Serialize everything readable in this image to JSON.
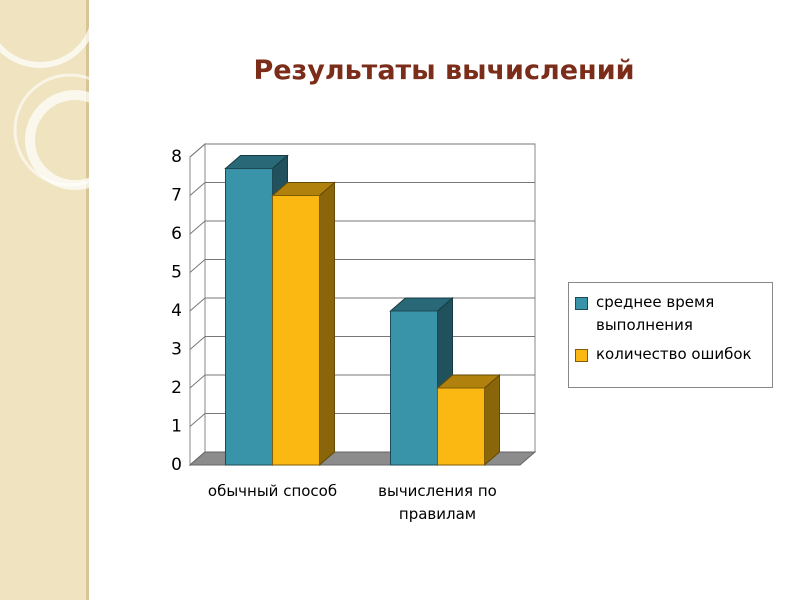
{
  "chart_data": {
    "type": "bar",
    "title": "Результаты вычислений",
    "categories": [
      "обычный способ",
      "вычисления по правилам"
    ],
    "series": [
      {
        "name": "среднее время выполнения",
        "color": "#3a94a9",
        "values": [
          7.7,
          4
        ]
      },
      {
        "name": "количество ошибок",
        "color": "#fbb812",
        "values": [
          7,
          2
        ]
      }
    ],
    "ylim": [
      0,
      8
    ],
    "yticks": [
      0,
      1,
      2,
      3,
      4,
      5,
      6,
      7,
      8
    ],
    "grid": true
  }
}
